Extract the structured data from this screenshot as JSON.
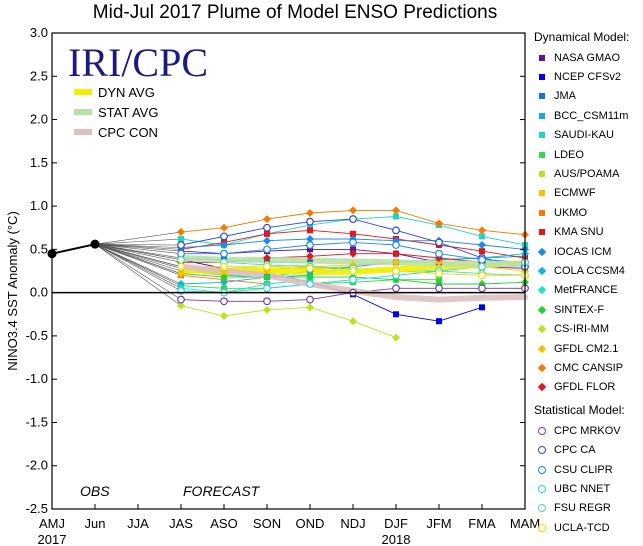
{
  "title": "Mid-Jul 2017 Plume of Model ENSO Predictions",
  "brand": "IRI/CPC",
  "annotations": {
    "obs": "OBS",
    "forecast": "FORECAST"
  },
  "chart_data": {
    "type": "line",
    "title": "Mid-Jul 2017 Plume of Model ENSO Predictions",
    "ylabel": "NINO3.4 SST Anomaly (°C)",
    "ylim": [
      -2.5,
      3.0
    ],
    "yticks": [
      "3.0",
      "2.5",
      "2.0",
      "1.5",
      "1.0",
      "0.5",
      "0.0",
      "-0.5",
      "-1.0",
      "-1.5",
      "-2.0",
      "-2.5"
    ],
    "x": [
      "AMJ",
      "Jun",
      "JJA",
      "JAS",
      "ASO",
      "SON",
      "OND",
      "NDJ",
      "DJF",
      "JFM",
      "FMA",
      "MAM"
    ],
    "year_labels": [
      {
        "label": "2017",
        "at": "AMJ"
      },
      {
        "label": "2018",
        "at": "DJF"
      }
    ],
    "observed": {
      "name": "OBS",
      "x": [
        "AMJ",
        "Jun"
      ],
      "values": [
        0.45,
        0.56
      ]
    },
    "averages": [
      {
        "name": "DYN AVG",
        "color": "#f2ee00",
        "values": [
          null,
          null,
          null,
          0.26,
          0.25,
          0.25,
          0.24,
          0.24,
          0.27,
          0.3,
          0.32,
          0.34
        ]
      },
      {
        "name": "STAT AVG",
        "color": "#b9e0ac",
        "values": [
          null,
          null,
          null,
          0.4,
          0.38,
          0.38,
          0.37,
          0.36,
          0.35,
          0.34,
          0.33,
          0.33
        ]
      },
      {
        "name": "CPC CON",
        "color": "#ddc0c0",
        "values": [
          null,
          null,
          null,
          0.3,
          0.25,
          0.2,
          0.1,
          0.02,
          -0.05,
          -0.08,
          -0.06,
          -0.05
        ]
      }
    ],
    "dynamical_heading": "Dynamical Model:",
    "statistical_heading": "Statistical Model:",
    "series": [
      {
        "name": "NASA GMAO",
        "group": "dynamical",
        "marker": "square",
        "color": "#5b1696",
        "values": [
          null,
          null,
          null,
          0.48,
          0.45,
          0.48,
          0.5,
          0.5,
          0.45,
          0.35,
          0.3,
          0.28
        ]
      },
      {
        "name": "NCEP CFSv2",
        "group": "dynamical",
        "marker": "square",
        "color": "#0000e0",
        "values": [
          null,
          null,
          null,
          0.38,
          0.28,
          0.22,
          0.12,
          -0.02,
          -0.25,
          -0.33,
          -0.17,
          null
        ]
      },
      {
        "name": "JMA",
        "group": "dynamical",
        "marker": "square",
        "color": "#1870d8",
        "values": [
          null,
          null,
          null,
          0.4,
          0.38,
          0.35,
          0.35,
          null,
          null,
          null,
          null,
          null
        ]
      },
      {
        "name": "BCC_CSM11m",
        "group": "dynamical",
        "marker": "square",
        "color": "#14a8e8",
        "values": [
          null,
          null,
          null,
          0.28,
          0.2,
          0.18,
          0.2,
          0.3,
          0.35,
          0.38,
          0.4,
          0.42
        ]
      },
      {
        "name": "SAUDI-KAU",
        "group": "dynamical",
        "marker": "square",
        "color": "#1ed4c4",
        "values": [
          null,
          null,
          null,
          0.62,
          0.55,
          0.68,
          0.78,
          0.85,
          0.88,
          0.78,
          0.65,
          0.55
        ]
      },
      {
        "name": "LDEO",
        "group": "dynamical",
        "marker": "square",
        "color": "#36d64a",
        "values": [
          null,
          null,
          null,
          0.08,
          0.05,
          0.05,
          0.1,
          0.12,
          0.15,
          0.15,
          null,
          null
        ]
      },
      {
        "name": "AUS/POAMA",
        "group": "dynamical",
        "marker": "square",
        "color": "#b4e61e",
        "values": [
          null,
          null,
          null,
          0.3,
          0.28,
          0.3,
          0.32,
          null,
          null,
          null,
          null,
          null
        ]
      },
      {
        "name": "ECMWF",
        "group": "dynamical",
        "marker": "square",
        "color": "#f5c400",
        "values": [
          null,
          null,
          null,
          0.25,
          0.2,
          0.25,
          0.28,
          0.3,
          null,
          null,
          null,
          null
        ]
      },
      {
        "name": "UKMO",
        "group": "dynamical",
        "marker": "square",
        "color": "#f27a00",
        "values": [
          null,
          null,
          null,
          0.2,
          0.15,
          0.1,
          null,
          null,
          null,
          null,
          null,
          null
        ]
      },
      {
        "name": "KMA SNU",
        "group": "dynamical",
        "marker": "square",
        "color": "#e01818",
        "values": [
          null,
          null,
          null,
          0.5,
          0.58,
          0.68,
          0.72,
          0.68,
          0.62,
          0.55,
          0.48,
          0.4
        ]
      },
      {
        "name": "IOCAS ICM",
        "group": "dynamical",
        "marker": "diamond",
        "color": "#1e8ae8",
        "values": [
          null,
          null,
          null,
          0.52,
          0.55,
          0.6,
          0.62,
          0.62,
          0.6,
          0.6,
          0.55,
          0.5
        ]
      },
      {
        "name": "COLA CCSM4",
        "group": "dynamical",
        "marker": "diamond",
        "color": "#14b4d2",
        "values": [
          null,
          null,
          null,
          0.1,
          0.12,
          0.18,
          0.25,
          0.3,
          0.35,
          0.38,
          0.4,
          0.45
        ]
      },
      {
        "name": "MetFRANCE",
        "group": "dynamical",
        "marker": "diamond",
        "color": "#1ee2c2",
        "values": [
          null,
          null,
          null,
          0.05,
          0.0,
          0.1,
          0.15,
          null,
          null,
          null,
          null,
          null
        ]
      },
      {
        "name": "SINTEX-F",
        "group": "dynamical",
        "marker": "diamond",
        "color": "#22d234",
        "values": [
          null,
          null,
          null,
          0.22,
          0.18,
          0.18,
          0.18,
          0.18,
          0.15,
          0.1,
          0.1,
          0.12
        ]
      },
      {
        "name": "CS-IRI-MM",
        "group": "dynamical",
        "marker": "diamond",
        "color": "#b4e61e",
        "values": [
          null,
          null,
          null,
          -0.15,
          -0.27,
          -0.2,
          -0.17,
          -0.33,
          -0.52,
          null,
          null,
          null
        ]
      },
      {
        "name": "GFDL CM2.1",
        "group": "dynamical",
        "marker": "diamond",
        "color": "#f5c400",
        "values": [
          null,
          null,
          null,
          0.22,
          0.25,
          0.27,
          0.3,
          0.32,
          0.35,
          0.35,
          0.3,
          0.25
        ]
      },
      {
        "name": "CMC CANSIP",
        "group": "dynamical",
        "marker": "diamond",
        "color": "#f27a00",
        "values": [
          null,
          null,
          null,
          0.7,
          0.75,
          0.85,
          0.92,
          0.95,
          0.95,
          0.8,
          0.72,
          0.67
        ]
      },
      {
        "name": "GFDL FLOR",
        "group": "dynamical",
        "marker": "diamond",
        "color": "#e01818",
        "values": [
          null,
          null,
          null,
          0.35,
          0.35,
          0.4,
          0.42,
          0.45,
          0.45,
          0.4,
          0.35,
          0.3
        ]
      },
      {
        "name": "CPC MRKOV",
        "group": "statistical",
        "marker": "circle",
        "color": "#7a3ca8",
        "values": [
          null,
          null,
          null,
          -0.08,
          -0.1,
          -0.1,
          -0.08,
          0.0,
          0.05,
          0.05,
          0.05,
          0.05
        ]
      },
      {
        "name": "CPC CA",
        "group": "statistical",
        "marker": "circle",
        "color": "#2848d8",
        "values": [
          null,
          null,
          null,
          0.55,
          0.65,
          0.75,
          0.82,
          0.85,
          0.72,
          0.58,
          0.4,
          0.3
        ]
      },
      {
        "name": "CSU CLIPR",
        "group": "statistical",
        "marker": "circle",
        "color": "#1e88e8",
        "values": [
          null,
          null,
          null,
          0.45,
          0.45,
          0.5,
          0.55,
          0.58,
          0.55,
          0.45,
          0.38,
          0.35
        ]
      },
      {
        "name": "UBC NNET",
        "group": "statistical",
        "marker": "circle",
        "color": "#2ad2e6",
        "values": [
          null,
          null,
          null,
          0.02,
          0.0,
          0.05,
          0.1,
          0.15,
          0.2,
          0.25,
          0.3,
          0.35
        ]
      },
      {
        "name": "FSU REGR",
        "group": "statistical",
        "marker": "circle",
        "color": "#40e0b0",
        "values": [
          null,
          null,
          null,
          0.38,
          0.35,
          0.32,
          0.3,
          0.28,
          0.25,
          0.25,
          0.22,
          0.2
        ]
      },
      {
        "name": "UCLA-TCD",
        "group": "statistical",
        "marker": "circle",
        "color": "#f5d800",
        "values": [
          null,
          null,
          null,
          0.3,
          0.3,
          0.3,
          0.28,
          0.25,
          0.25,
          0.22,
          0.2,
          0.2
        ]
      }
    ]
  }
}
